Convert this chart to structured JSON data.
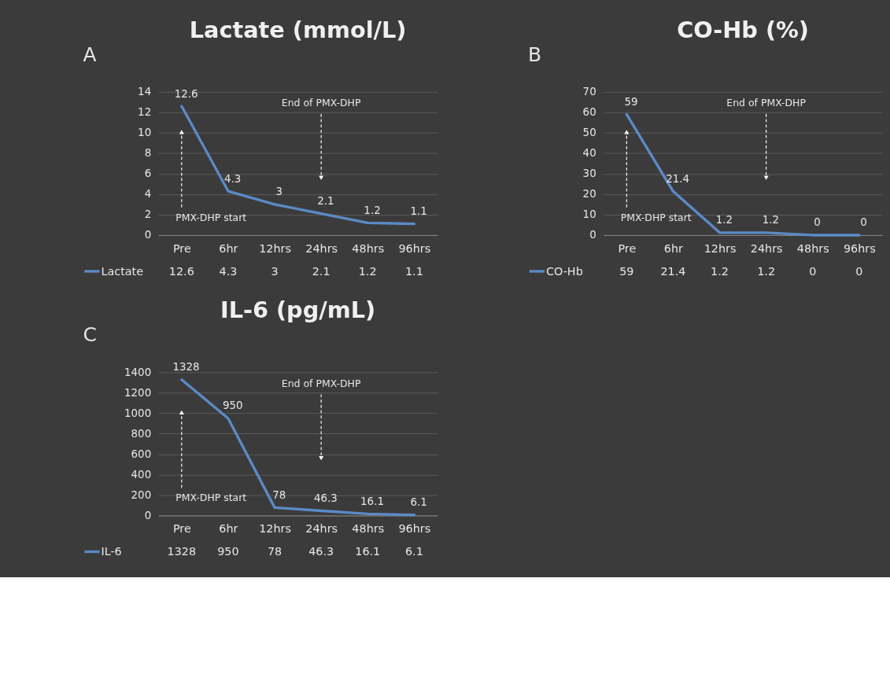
{
  "chart_data": [
    {
      "type": "line",
      "title": "Lactate (mmol/L)",
      "categories": [
        "Pre",
        "6hr",
        "12hrs",
        "24hrs",
        "48hrs",
        "96hrs"
      ],
      "series": [
        {
          "name": "Lactate",
          "color": "#5b8ac6",
          "values": [
            12.6,
            4.3,
            3,
            2.1,
            1.2,
            1.1
          ],
          "value_labels": [
            "12.6",
            "4.3",
            "3",
            "2.1",
            "1.2",
            "1.1"
          ]
        }
      ],
      "ylim": [
        0,
        14
      ],
      "yticks": [
        0,
        2,
        4,
        6,
        8,
        10,
        12,
        14
      ],
      "grid": "y",
      "legend": "bottom",
      "annotations": [
        "A",
        "PMX-DHP start",
        "End of PMX-DHP",
        "12.6",
        "4.3",
        "3",
        "2.1",
        "1.2",
        "1.1"
      ]
    },
    {
      "type": "line",
      "title": "CO-Hb (%)",
      "categories": [
        "Pre",
        "6hr",
        "12hrs",
        "24hrs",
        "48hrs",
        "96hrs"
      ],
      "series": [
        {
          "name": "CO-Hb",
          "color": "#5b8ac6",
          "values": [
            59,
            21.4,
            1.2,
            1.2,
            0,
            0
          ],
          "value_labels": [
            "59",
            "21.4",
            "1.2",
            "1.2",
            "0",
            "0"
          ]
        }
      ],
      "ylim": [
        0,
        70
      ],
      "yticks": [
        0,
        10,
        20,
        30,
        40,
        50,
        60,
        70
      ],
      "grid": "y",
      "legend": "bottom",
      "annotations": [
        "B",
        "PMX-DHP start",
        "End of PMX-DHP",
        "59",
        "21.4",
        "1.2",
        "1.2",
        "0",
        "0"
      ]
    },
    {
      "type": "line",
      "title": "IL-6 (pg/mL)",
      "categories": [
        "Pre",
        "6hr",
        "12hrs",
        "24hrs",
        "48hrs",
        "96hrs"
      ],
      "series": [
        {
          "name": "IL-6",
          "color": "#5b8ac6",
          "values": [
            1328,
            950,
            78,
            46.3,
            16.1,
            6.1
          ],
          "value_labels": [
            "1328",
            "950",
            "78",
            "46.3",
            "16.1",
            "6.1"
          ]
        }
      ],
      "ylim": [
        0,
        1400
      ],
      "yticks": [
        0,
        200,
        400,
        600,
        800,
        1000,
        1200,
        1400
      ],
      "grid": "y",
      "legend": "bottom",
      "annotations": [
        "C",
        "PMX-DHP start",
        "End of PMX-DHP",
        "1328",
        "950",
        "78",
        "46.3",
        "16.1",
        "6.1"
      ]
    }
  ]
}
